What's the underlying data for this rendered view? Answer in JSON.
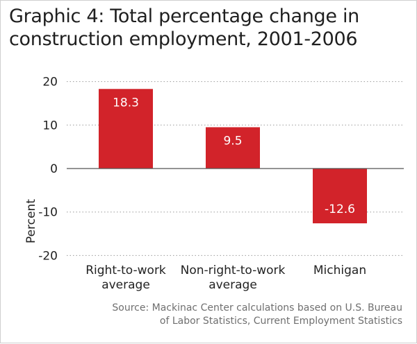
{
  "title_line1": "Graphic 4: Total percentage change in",
  "title_line2": "construction employment, 2001-2006",
  "source_line1": "Source: Mackinac Center calculations based on U.S. Bureau",
  "source_line2": "of Labor Statistics, Current Employment Statistics",
  "chart_data": {
    "type": "bar",
    "title": "Graphic 4: Total percentage change in construction employment, 2001-2006",
    "categories": [
      [
        "Right-to-work",
        "average"
      ],
      [
        "Non-right-to-work",
        "average"
      ],
      [
        "Michigan"
      ]
    ],
    "values": [
      18.3,
      9.5,
      -12.6
    ],
    "data_labels": [
      "18.3",
      "9.5",
      "-12.6"
    ],
    "xlabel": "",
    "ylabel": "Percent",
    "ylim": [
      -20,
      20
    ],
    "yticks": [
      20,
      10,
      0,
      -10,
      -20
    ],
    "ytick_labels": [
      "20",
      "10",
      "0",
      "-10",
      "-20"
    ],
    "grid": "dotted horizontal",
    "legend": "none",
    "bar_color": "#d2232a",
    "label_color": "#ffffff"
  }
}
